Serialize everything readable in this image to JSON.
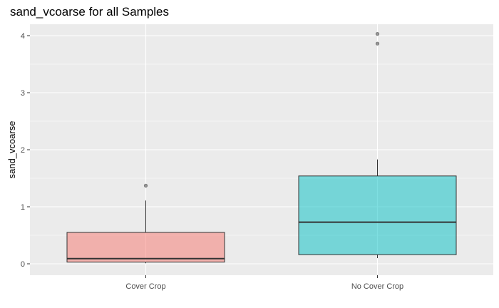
{
  "chart_data": {
    "type": "boxplot",
    "title": "sand_vcoarse for all Samples",
    "xlabel": "",
    "ylabel": "sand_vcoarse",
    "ylim": [
      -0.2,
      4.2
    ],
    "yticks": [
      "0",
      "1",
      "2",
      "3",
      "4"
    ],
    "grid": true,
    "legend": "none",
    "categories": [
      "Cover Crop",
      "No Cover Crop"
    ],
    "boxes": [
      {
        "category": "Cover Crop",
        "color": "#F8766D",
        "min": 0.01,
        "q1": 0.03,
        "median": 0.09,
        "q3": 0.55,
        "max": 1.11,
        "outliers": [
          1.37
        ]
      },
      {
        "category": "No Cover Crop",
        "color": "#00BFC4",
        "min": 0.1,
        "q1": 0.16,
        "median": 0.73,
        "q3": 1.54,
        "max": 1.83,
        "outliers": [
          3.86,
          4.03
        ]
      }
    ],
    "panel_background": "#EBEBEB",
    "grid_color": "#FFFFFF"
  }
}
